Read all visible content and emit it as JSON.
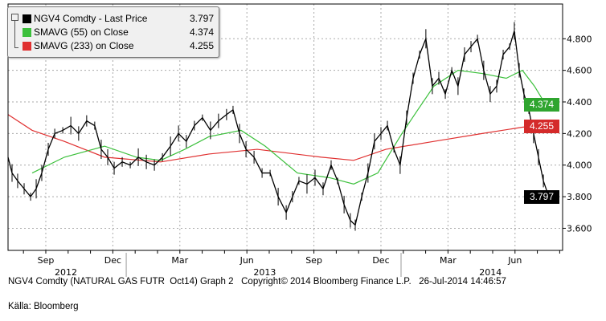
{
  "chart_data": {
    "type": "line",
    "title": "NGV4 Comdty - Last Price",
    "x_unit": "months since 2012-07 (Sep 2012 = 2)",
    "xlim": [
      0.31,
      25.13
    ],
    "ylim": [
      3.46,
      5.02
    ],
    "yticks": [
      3.6,
      3.8,
      4.0,
      4.2,
      4.4,
      4.6,
      4.8
    ],
    "ytick_labels": [
      "3.600",
      "3.800",
      "4.000",
      "4.200",
      "4.400",
      "4.600",
      "4.800"
    ],
    "month_ticks": [
      {
        "m": 2,
        "label": "Sep"
      },
      {
        "m": 5,
        "label": "Dec"
      },
      {
        "m": 8,
        "label": "Mar"
      },
      {
        "m": 11,
        "label": "Jun"
      },
      {
        "m": 14,
        "label": "Sep"
      },
      {
        "m": 17,
        "label": "Dec"
      },
      {
        "m": 20,
        "label": "Mar"
      },
      {
        "m": 23,
        "label": "Jun"
      }
    ],
    "year_labels": [
      {
        "m": 2.9,
        "label": "2012"
      },
      {
        "m": 11.8,
        "label": "2013"
      },
      {
        "m": 21.9,
        "label": "2014"
      }
    ],
    "year_separators": [
      5.6,
      17.9
    ],
    "grid": true,
    "legend_position": "top-left",
    "series": [
      {
        "name": "NGV4 Comdty - Last Price",
        "color": "#000000",
        "last": "3.797",
        "points": [
          [
            0.31,
            4.05
          ],
          [
            0.49,
            3.95
          ],
          [
            0.74,
            3.9
          ],
          [
            1.03,
            3.85
          ],
          [
            1.32,
            3.8
          ],
          [
            1.57,
            3.85
          ],
          [
            1.82,
            3.95
          ],
          [
            2.11,
            4.1
          ],
          [
            2.4,
            4.2
          ],
          [
            2.76,
            4.22
          ],
          [
            3.12,
            4.25
          ],
          [
            3.47,
            4.2
          ],
          [
            3.83,
            4.28
          ],
          [
            4.19,
            4.25
          ],
          [
            4.48,
            4.1
          ],
          [
            4.77,
            4.05
          ],
          [
            5.06,
            3.98
          ],
          [
            5.42,
            4.02
          ],
          [
            5.78,
            4.0
          ],
          [
            6.14,
            4.05
          ],
          [
            6.5,
            4.02
          ],
          [
            6.86,
            4.0
          ],
          [
            7.22,
            4.05
          ],
          [
            7.58,
            4.12
          ],
          [
            7.94,
            4.2
          ],
          [
            8.29,
            4.15
          ],
          [
            8.65,
            4.25
          ],
          [
            9.01,
            4.3
          ],
          [
            9.37,
            4.22
          ],
          [
            9.73,
            4.28
          ],
          [
            10.09,
            4.32
          ],
          [
            10.38,
            4.35
          ],
          [
            10.67,
            4.2
          ],
          [
            10.96,
            4.1
          ],
          [
            11.32,
            4.05
          ],
          [
            11.68,
            3.95
          ],
          [
            12.04,
            3.95
          ],
          [
            12.4,
            3.8
          ],
          [
            12.76,
            3.7
          ],
          [
            13.04,
            3.8
          ],
          [
            13.33,
            3.9
          ],
          [
            13.69,
            3.88
          ],
          [
            14.05,
            3.92
          ],
          [
            14.41,
            3.85
          ],
          [
            14.77,
            4.0
          ],
          [
            15.06,
            3.9
          ],
          [
            15.35,
            3.75
          ],
          [
            15.63,
            3.65
          ],
          [
            15.85,
            3.62
          ],
          [
            16.14,
            3.8
          ],
          [
            16.42,
            3.95
          ],
          [
            16.71,
            4.15
          ],
          [
            17.0,
            4.2
          ],
          [
            17.29,
            4.25
          ],
          [
            17.58,
            4.1
          ],
          [
            17.86,
            4.0
          ],
          [
            18.15,
            4.3
          ],
          [
            18.44,
            4.55
          ],
          [
            18.73,
            4.7
          ],
          [
            19.01,
            4.8
          ],
          [
            19.3,
            4.5
          ],
          [
            19.59,
            4.55
          ],
          [
            19.88,
            4.45
          ],
          [
            20.17,
            4.6
          ],
          [
            20.45,
            4.5
          ],
          [
            20.74,
            4.7
          ],
          [
            21.03,
            4.75
          ],
          [
            21.32,
            4.8
          ],
          [
            21.6,
            4.6
          ],
          [
            21.89,
            4.45
          ],
          [
            22.18,
            4.5
          ],
          [
            22.47,
            4.7
          ],
          [
            22.76,
            4.75
          ],
          [
            22.97,
            4.85
          ],
          [
            23.19,
            4.6
          ],
          [
            23.4,
            4.45
          ],
          [
            23.62,
            4.35
          ],
          [
            23.83,
            4.2
          ],
          [
            24.05,
            4.05
          ],
          [
            24.27,
            3.9
          ],
          [
            24.52,
            3.797
          ]
        ]
      },
      {
        "name": "SMAVG (55) on Close",
        "color": "#3cc03c",
        "last": "4.374",
        "points": [
          [
            1.39,
            3.95
          ],
          [
            2.83,
            4.05
          ],
          [
            4.63,
            4.12
          ],
          [
            6.06,
            4.05
          ],
          [
            7.14,
            4.03
          ],
          [
            8.22,
            4.1
          ],
          [
            9.3,
            4.18
          ],
          [
            10.74,
            4.22
          ],
          [
            11.82,
            4.12
          ],
          [
            13.26,
            3.95
          ],
          [
            14.7,
            3.92
          ],
          [
            15.78,
            3.88
          ],
          [
            16.86,
            3.95
          ],
          [
            17.94,
            4.2
          ],
          [
            18.65,
            4.35
          ],
          [
            19.37,
            4.5
          ],
          [
            20.45,
            4.6
          ],
          [
            21.53,
            4.58
          ],
          [
            22.61,
            4.55
          ],
          [
            23.33,
            4.6
          ],
          [
            23.87,
            4.5
          ],
          [
            24.41,
            4.374
          ]
        ]
      },
      {
        "name": "SMAVG (233) on Close",
        "color": "#e03030",
        "last": "4.255",
        "points": [
          [
            0.31,
            4.32
          ],
          [
            1.39,
            4.22
          ],
          [
            2.83,
            4.15
          ],
          [
            4.63,
            4.05
          ],
          [
            7.14,
            4.02
          ],
          [
            9.3,
            4.07
          ],
          [
            11.46,
            4.1
          ],
          [
            14.34,
            4.05
          ],
          [
            15.78,
            4.03
          ],
          [
            17.22,
            4.1
          ],
          [
            19.37,
            4.15
          ],
          [
            21.53,
            4.2
          ],
          [
            23.33,
            4.24
          ],
          [
            24.41,
            4.255
          ]
        ]
      }
    ]
  },
  "legend": {
    "items": [
      {
        "label": "NGV4 Comdty - Last Price",
        "value": "3.797"
      },
      {
        "label": "SMAVG (55) on Close",
        "value": "4.374"
      },
      {
        "label": "SMAVG (233) on Close",
        "value": "4.255"
      }
    ]
  },
  "tags": {
    "sma55": "4.374",
    "sma233": "4.255",
    "last": "3.797"
  },
  "footer": "NGV4 Comdty (NATURAL GAS FUTR  Oct14) Graph 2   Copyright© 2014 Bloomberg Finance L.P.   26-Jul-2014 14:46:57",
  "source": "Källa: Bloomberg"
}
